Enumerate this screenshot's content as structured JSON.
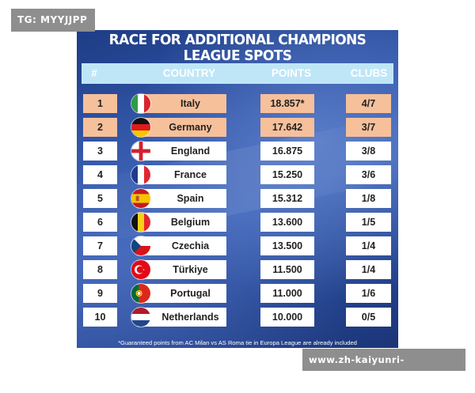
{
  "watermark_top": "TG: MYYJJPP",
  "watermark_bottom": "www.zh-kaiyunri-kysports.com",
  "title": "RACE FOR ADDITIONAL CHAMPIONS LEAGUE SPOTS",
  "headers": {
    "num": "#",
    "country": "COUNTRY",
    "points": "POINTS",
    "clubs": "CLUBS"
  },
  "rows": [
    {
      "num": "1",
      "country": "Italy",
      "points": "18.857*",
      "clubs": "4/7",
      "flag": "italy-flag-icon",
      "highlight": true
    },
    {
      "num": "2",
      "country": "Germany",
      "points": "17.642",
      "clubs": "3/7",
      "flag": "germany-flag-icon",
      "highlight": true
    },
    {
      "num": "3",
      "country": "England",
      "points": "16.875",
      "clubs": "3/8",
      "flag": "england-flag-icon",
      "highlight": false
    },
    {
      "num": "4",
      "country": "France",
      "points": "15.250",
      "clubs": "3/6",
      "flag": "france-flag-icon",
      "highlight": false
    },
    {
      "num": "5",
      "country": "Spain",
      "points": "15.312",
      "clubs": "1/8",
      "flag": "spain-flag-icon",
      "highlight": false
    },
    {
      "num": "6",
      "country": "Belgium",
      "points": "13.600",
      "clubs": "1/5",
      "flag": "belgium-flag-icon",
      "highlight": false
    },
    {
      "num": "7",
      "country": "Czechia",
      "points": "13.500",
      "clubs": "1/4",
      "flag": "czechia-flag-icon",
      "highlight": false
    },
    {
      "num": "8",
      "country": "Türkiye",
      "points": "11.500",
      "clubs": "1/4",
      "flag": "turkiye-flag-icon",
      "highlight": false
    },
    {
      "num": "9",
      "country": "Portugal",
      "points": "11.000",
      "clubs": "1/6",
      "flag": "portugal-flag-icon",
      "highlight": false
    },
    {
      "num": "10",
      "country": "Netherlands",
      "points": "10.000",
      "clubs": "0/5",
      "flag": "netherlands-flag-icon",
      "highlight": false
    }
  ],
  "footnote": "*Guaranteed points from AC Milan vs AS Roma tie in Europa League are already included",
  "colors": {
    "header_bar": "#bfe6f7",
    "highlight_cell": "#f6c09b",
    "background_blue": "#2f55a8"
  }
}
